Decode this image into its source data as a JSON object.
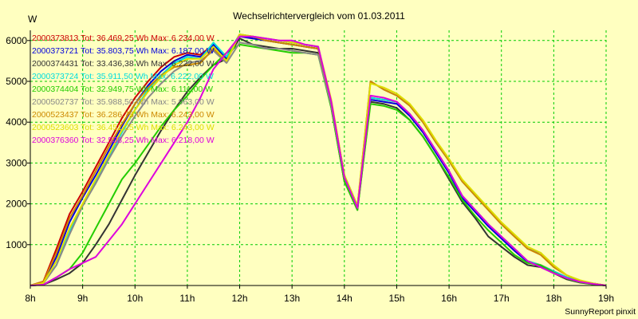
{
  "colors": {
    "background": "#ffffc0",
    "grid": "#00cc00",
    "axis": "#000000"
  },
  "chart_data": {
    "type": "line",
    "title": "Wechselrichtervergleich vom 01.03.2011",
    "ylabel": "W",
    "xlabel": "",
    "footer": "SunnyReport pinxit",
    "xlim": [
      8,
      19
    ],
    "ylim": [
      0,
      6250
    ],
    "grid": true,
    "legend_placement": "top-left",
    "x_ticks": [
      {
        "value": 8,
        "label": "8h"
      },
      {
        "value": 9,
        "label": "9h"
      },
      {
        "value": 10,
        "label": "10h"
      },
      {
        "value": 11,
        "label": "11h"
      },
      {
        "value": 12,
        "label": "12h"
      },
      {
        "value": 13,
        "label": "13h"
      },
      {
        "value": 14,
        "label": "14h"
      },
      {
        "value": 15,
        "label": "15h"
      },
      {
        "value": 16,
        "label": "16h"
      },
      {
        "value": 17,
        "label": "17h"
      },
      {
        "value": 18,
        "label": "18h"
      },
      {
        "value": 19,
        "label": "19h"
      }
    ],
    "y_ticks": [
      {
        "value": 1000,
        "label": "1000"
      },
      {
        "value": 2000,
        "label": "2000"
      },
      {
        "value": 3000,
        "label": "3000"
      },
      {
        "value": 4000,
        "label": "4000"
      },
      {
        "value": 5000,
        "label": "5000"
      },
      {
        "value": 6000,
        "label": "6000"
      }
    ],
    "x": [
      8.0,
      8.25,
      8.5,
      8.75,
      9.0,
      9.25,
      9.5,
      9.75,
      10.0,
      10.25,
      10.5,
      10.75,
      11.0,
      11.25,
      11.5,
      11.75,
      12.0,
      12.25,
      12.5,
      12.75,
      13.0,
      13.25,
      13.5,
      13.75,
      14.0,
      14.25,
      14.5,
      14.75,
      15.0,
      15.25,
      15.5,
      15.75,
      16.0,
      16.25,
      16.5,
      16.75,
      17.0,
      17.25,
      17.5,
      17.75,
      18.0,
      18.25,
      18.5,
      18.75,
      19.0
    ],
    "series": [
      {
        "name": "2000373813 Tot: 36.469,25 Wh Max: 6.234,00 W",
        "color": "#cc0000",
        "values": [
          0,
          100,
          900,
          1750,
          2300,
          2900,
          3500,
          4100,
          4600,
          5000,
          5350,
          5600,
          5700,
          5650,
          5900,
          5600,
          6150,
          6050,
          6000,
          5950,
          5900,
          5850,
          5800,
          4500,
          2700,
          1950,
          4600,
          4550,
          4500,
          4200,
          3800,
          3300,
          2800,
          2200,
          1850,
          1500,
          1200,
          900,
          600,
          500,
          350,
          200,
          100,
          50,
          0
        ]
      },
      {
        "name": "2000373721 Tot: 35.803,75 Wh Max: 6.187,00 W",
        "color": "#0000dd",
        "values": [
          0,
          80,
          700,
          1550,
          2150,
          2700,
          3300,
          3900,
          4450,
          4900,
          5250,
          5500,
          5650,
          5600,
          5900,
          5550,
          6100,
          6050,
          6000,
          5950,
          5900,
          5850,
          5800,
          4450,
          2650,
          1900,
          4550,
          4500,
          4450,
          4150,
          3750,
          3250,
          2750,
          2150,
          1800,
          1450,
          1150,
          850,
          580,
          480,
          330,
          180,
          90,
          40,
          0
        ]
      },
      {
        "name": "2000374431 Tot: 33.436,38 Wh Max: 6.222,00 W",
        "color": "#333333",
        "values": [
          0,
          20,
          150,
          300,
          550,
          1000,
          1500,
          2100,
          2700,
          3250,
          3800,
          4300,
          4750,
          5100,
          5400,
          5550,
          6050,
          5900,
          5850,
          5800,
          5800,
          5750,
          5700,
          4350,
          2550,
          1850,
          4500,
          4450,
          4350,
          4050,
          3650,
          3150,
          2600,
          2050,
          1650,
          1200,
          950,
          700,
          500,
          450,
          300,
          150,
          70,
          30,
          0
        ]
      },
      {
        "name": "2000373724 Tot: 35.911,50 Wh Max: 6.222,00 W",
        "color": "#00dddd",
        "values": [
          0,
          70,
          500,
          1300,
          2000,
          2550,
          3150,
          3750,
          4300,
          4800,
          5150,
          5450,
          5600,
          5550,
          5950,
          5600,
          6150,
          6100,
          6050,
          6000,
          5950,
          5900,
          5850,
          4500,
          2700,
          1950,
          4600,
          4550,
          4500,
          4200,
          3800,
          3300,
          2800,
          2200,
          1850,
          1500,
          1200,
          900,
          600,
          500,
          350,
          200,
          100,
          50,
          0
        ]
      },
      {
        "name": "2000374404 Tot: 32.949,75 Wh Max: 6.111,00 W",
        "color": "#22cc00",
        "values": [
          0,
          20,
          200,
          400,
          800,
          1400,
          2000,
          2600,
          3000,
          3450,
          3900,
          4300,
          4650,
          5050,
          5400,
          5700,
          5900,
          5850,
          5800,
          5750,
          5700,
          5700,
          5650,
          4350,
          2550,
          1850,
          4450,
          4400,
          4300,
          4050,
          3650,
          3150,
          2650,
          2100,
          1700,
          1350,
          1050,
          750,
          550,
          500,
          320,
          170,
          80,
          30,
          0
        ]
      },
      {
        "name": "2000502737 Tot: 35.988,50 Wh Max: 5.963,00 W",
        "color": "#888888",
        "values": [
          0,
          50,
          500,
          1250,
          1950,
          2500,
          3100,
          3650,
          4150,
          4600,
          4950,
          5250,
          5450,
          5500,
          5750,
          5450,
          5950,
          5900,
          5800,
          5800,
          5750,
          5700,
          5650,
          4400,
          2650,
          1900,
          5000,
          4800,
          4650,
          4400,
          4000,
          3500,
          3050,
          2550,
          2200,
          1850,
          1500,
          1200,
          900,
          800,
          450,
          250,
          120,
          50,
          0
        ]
      },
      {
        "name": "2000523437 Tot: 36.286,75 Wh Max: 6.243,00 W",
        "color": "#cc8800",
        "values": [
          0,
          90,
          800,
          1650,
          2200,
          2800,
          3400,
          3950,
          4450,
          4850,
          5150,
          5350,
          5400,
          5450,
          5800,
          5500,
          6150,
          6100,
          6000,
          5950,
          5900,
          5850,
          5800,
          4500,
          2700,
          1950,
          5000,
          4800,
          4650,
          4400,
          4000,
          3500,
          3050,
          2550,
          2200,
          1850,
          1500,
          1200,
          900,
          750,
          450,
          250,
          120,
          50,
          0
        ]
      },
      {
        "name": "2000523603 Tot: 36.451,25 Wh Max: 6.243,00 W",
        "color": "#dddd00",
        "values": [
          0,
          60,
          600,
          1400,
          2000,
          2600,
          3200,
          3800,
          4300,
          4750,
          5100,
          5400,
          5550,
          5550,
          5850,
          5500,
          6150,
          6100,
          6050,
          6000,
          5950,
          5900,
          5850,
          4550,
          2700,
          1950,
          4950,
          4850,
          4700,
          4450,
          4050,
          3550,
          3100,
          2600,
          2250,
          1900,
          1550,
          1250,
          950,
          800,
          500,
          250,
          130,
          50,
          0
        ]
      },
      {
        "name": "2000376360 Tot: 32.538,25 Wh Max: 6.218,00 W",
        "color": "#dd00dd",
        "values": [
          0,
          20,
          200,
          400,
          550,
          700,
          1100,
          1500,
          2000,
          2500,
          3000,
          3500,
          4000,
          4600,
          5300,
          5700,
          6100,
          6100,
          6050,
          6000,
          6000,
          5900,
          5850,
          4500,
          2650,
          1900,
          4650,
          4600,
          4500,
          4200,
          3800,
          3300,
          2800,
          2200,
          1850,
          1500,
          1200,
          900,
          600,
          450,
          300,
          180,
          90,
          40,
          0
        ]
      }
    ]
  }
}
